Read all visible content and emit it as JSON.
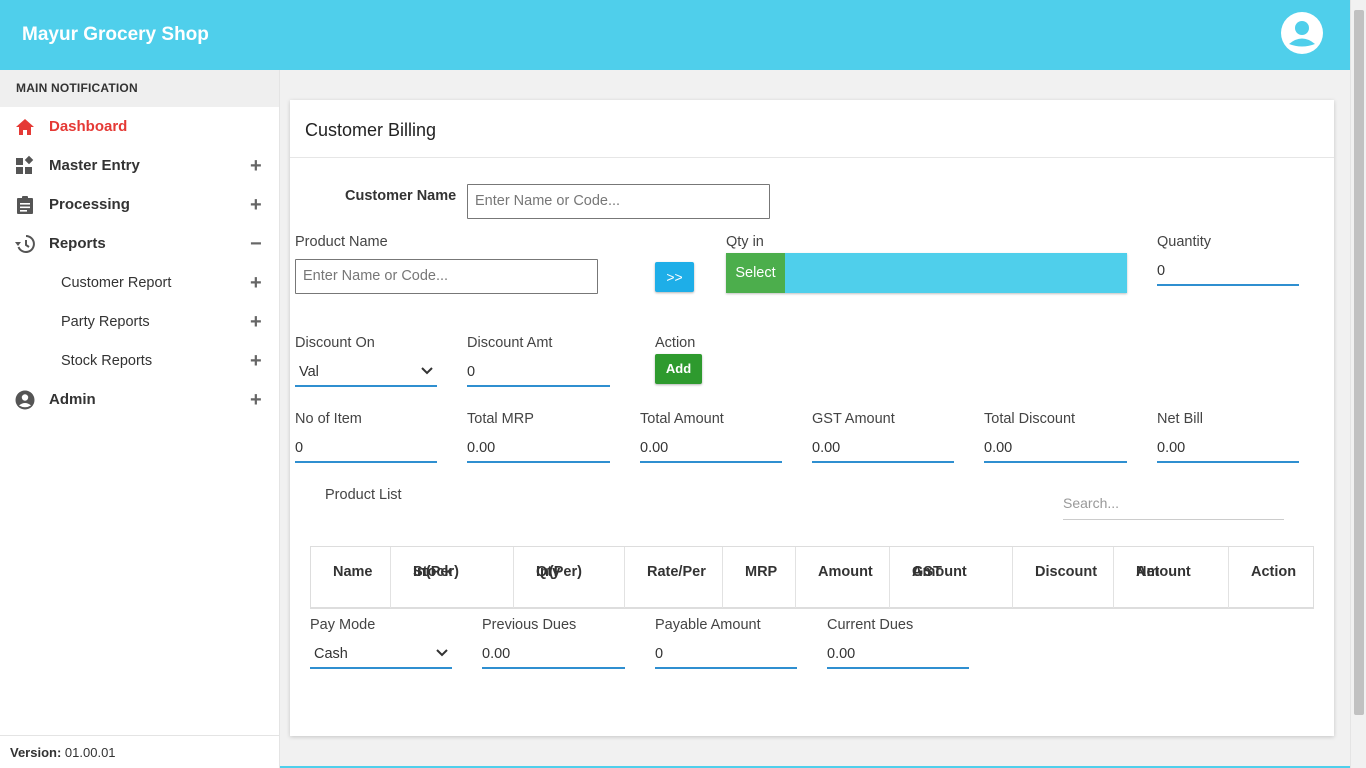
{
  "header": {
    "brand": "Mayur Grocery Shop"
  },
  "sidebar": {
    "section_title": "MAIN NOTIFICATION",
    "items": [
      {
        "label": "Dashboard",
        "toggle": ""
      },
      {
        "label": "Master Entry",
        "toggle": "+"
      },
      {
        "label": "Processing",
        "toggle": "+"
      },
      {
        "label": "Reports",
        "toggle": "−"
      },
      {
        "label": "Admin",
        "toggle": "+"
      }
    ],
    "sub_items": [
      {
        "label": "Customer Report",
        "toggle": "+"
      },
      {
        "label": "Party Reports",
        "toggle": "+"
      },
      {
        "label": "Stock Reports",
        "toggle": "+"
      }
    ],
    "version_label": "Version:",
    "version_value": "01.00.01"
  },
  "billing": {
    "title": "Customer Billing",
    "customer_name": {
      "label": "Customer Name",
      "placeholder": "Enter Name or Code..."
    },
    "product_name": {
      "label": "Product Name",
      "placeholder": "Enter Name or Code..."
    },
    "arrow_button": ">>",
    "qty_in": {
      "label": "Qty in",
      "select_label": "Select"
    },
    "quantity": {
      "label": "Quantity",
      "value": "0"
    },
    "discount_on": {
      "label": "Discount On",
      "value": "Val"
    },
    "discount_amt": {
      "label": "Discount Amt",
      "value": "0"
    },
    "action": {
      "label": "Action",
      "button": "Add"
    },
    "totals": [
      {
        "label": "No of Item",
        "value": "0"
      },
      {
        "label": "Total MRP",
        "value": "0.00"
      },
      {
        "label": "Total Amount",
        "value": "0.00"
      },
      {
        "label": "GST Amount",
        "value": "0.00"
      },
      {
        "label": "Total Discount",
        "value": "0.00"
      },
      {
        "label": "Net Bill",
        "value": "0.00"
      }
    ],
    "product_list_title": "Product List",
    "search_placeholder": "Search...",
    "table_headers": [
      {
        "l1": "",
        "l2": "Name"
      },
      {
        "l1": "Stock",
        "l2": "In(Per)"
      },
      {
        "l1": "Qty",
        "l2": "In(Per)"
      },
      {
        "l1": "",
        "l2": "Rate/Per"
      },
      {
        "l1": "",
        "l2": "MRP"
      },
      {
        "l1": "",
        "l2": "Amount"
      },
      {
        "l1": "GST",
        "l2": "Amount"
      },
      {
        "l1": "",
        "l2": "Discount"
      },
      {
        "l1": "Net",
        "l2": "Amount"
      },
      {
        "l1": "",
        "l2": "Action"
      }
    ],
    "pay_mode": {
      "label": "Pay Mode",
      "value": "Cash"
    },
    "previous_dues": {
      "label": "Previous Dues",
      "value": "0.00"
    },
    "payable_amount": {
      "label": "Payable Amount",
      "value": "0"
    },
    "current_dues": {
      "label": "Current Dues",
      "value": "0.00"
    }
  },
  "colors": {
    "header": "#4fcfeb",
    "active": "#e53935",
    "select_green": "#4cae4c",
    "add_green": "#2e9a2e",
    "underline": "#2f8fd0"
  }
}
